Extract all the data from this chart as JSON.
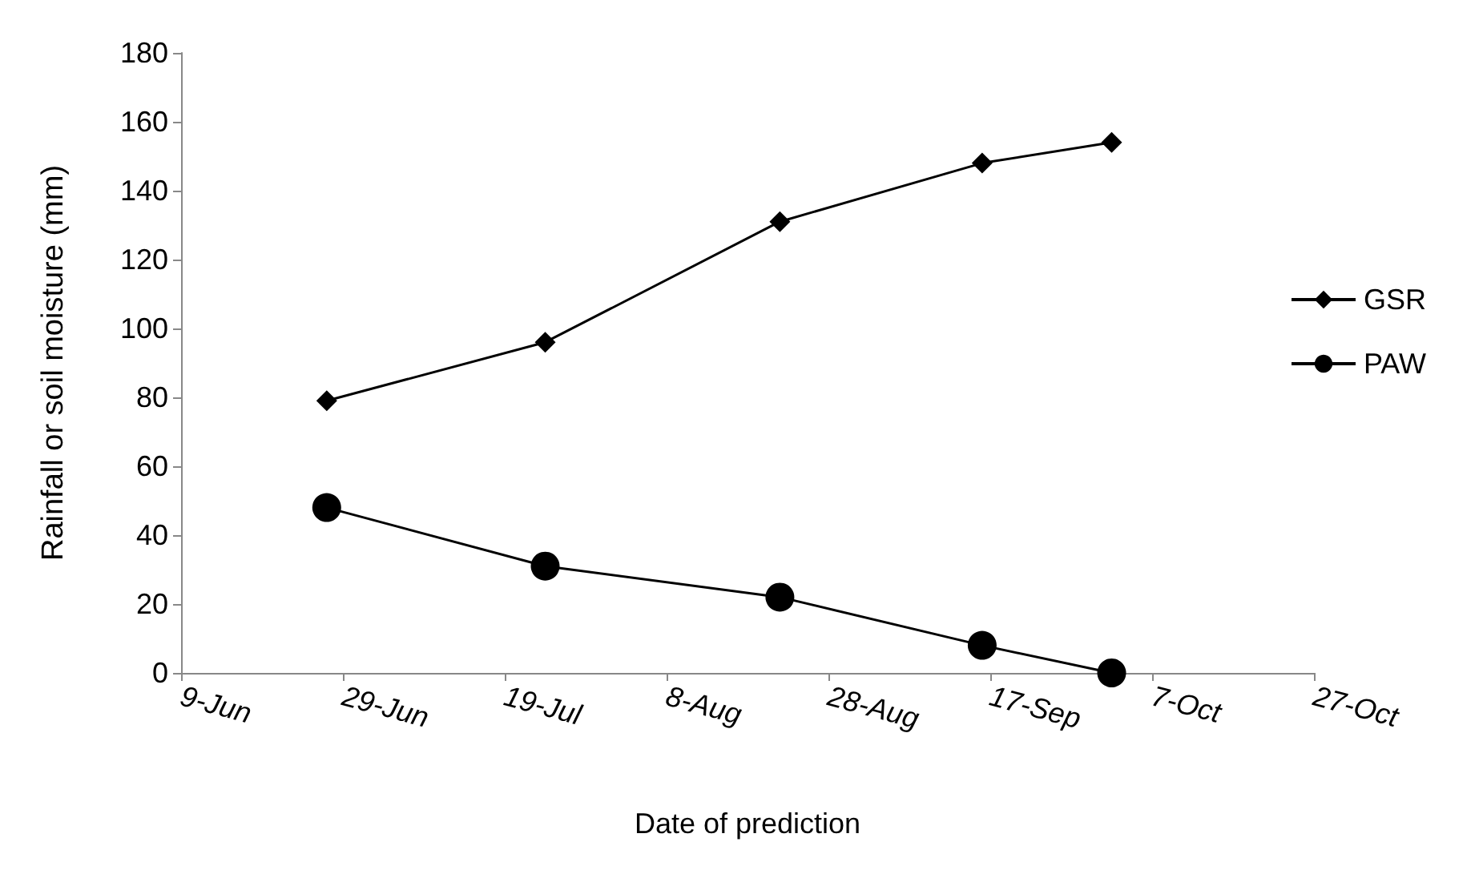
{
  "chart_data": {
    "type": "line",
    "xlabel": "Date of prediction",
    "ylabel": "Rainfall or soil moisture (mm)",
    "x": [
      "--06-27",
      "--07-24",
      "--08-22",
      "--09-16",
      "--10-02"
    ],
    "series": [
      {
        "name": "GSR",
        "color": "#000000",
        "marker": "diamond",
        "values": [
          79,
          96,
          131,
          148,
          154
        ]
      },
      {
        "name": "PAW",
        "color": "#000000",
        "marker": "circle",
        "values": [
          48,
          31,
          22,
          8,
          0
        ]
      }
    ],
    "xlim": [
      "--06-09",
      "--10-27"
    ],
    "xticks": [
      {
        "value": "--06-09",
        "label": "9-Jun"
      },
      {
        "value": "--06-29",
        "label": "29-Jun"
      },
      {
        "value": "--07-19",
        "label": "19-Jul"
      },
      {
        "value": "--08-08",
        "label": "8-Aug"
      },
      {
        "value": "--08-28",
        "label": "28-Aug"
      },
      {
        "value": "--09-17",
        "label": "17-Sep"
      },
      {
        "value": "--10-07",
        "label": "7-Oct"
      },
      {
        "value": "--10-27",
        "label": "27-Oct"
      }
    ],
    "ylim": [
      0,
      180
    ],
    "yticks": [
      0,
      20,
      40,
      60,
      80,
      100,
      120,
      140,
      160,
      180
    ],
    "grid": false,
    "legend": "right",
    "line_style": "solid"
  }
}
